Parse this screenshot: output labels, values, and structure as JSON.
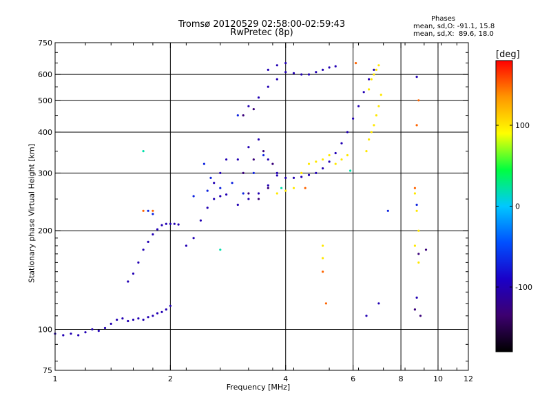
{
  "header": {
    "title_line1": "Tromsø 20120529 02:58:00-02:59:43",
    "title_line2": "RwPretec (8p)"
  },
  "phase_info": {
    "heading": "Phases",
    "line_o": "mean, sd,O: -91.1, 15.8",
    "line_x": "mean, sd,X:  89.6, 18.0"
  },
  "chart_data": {
    "type": "scatter",
    "xlabel": "Frequency [MHz]",
    "ylabel": "Stationary phase Virtual Height [km]",
    "xscale": "log",
    "yscale": "log",
    "xlim": [
      1,
      12
    ],
    "ylim": [
      75,
      750
    ],
    "xticks": [
      1,
      2,
      4,
      6,
      8,
      10,
      12
    ],
    "yticks": [
      75,
      100,
      200,
      300,
      400,
      500,
      600,
      750
    ],
    "x_gridlines": [
      2,
      4,
      6,
      8,
      10
    ],
    "y_gridlines": [
      100,
      200,
      300,
      400,
      500,
      600
    ],
    "grid": true,
    "colorbar": {
      "label": "[deg]",
      "range": [
        -180,
        180
      ],
      "ticks": [
        100,
        0,
        -100
      ],
      "colormap": "rainbow (black-purple-blue-cyan-green-yellow-orange-red)",
      "stops": [
        "#000000",
        "#3d0070",
        "#1a00c8",
        "#0050ff",
        "#00c8ff",
        "#00ff40",
        "#ffff00",
        "#ff9600",
        "#ff0000"
      ]
    },
    "series": [
      {
        "phase": -100,
        "points": [
          [
            1.0,
            97
          ],
          [
            1.05,
            96
          ],
          [
            1.1,
            97
          ],
          [
            1.15,
            96
          ],
          [
            1.2,
            98
          ],
          [
            1.25,
            100
          ],
          [
            1.3,
            99
          ],
          [
            1.35,
            101
          ],
          [
            1.4,
            104
          ],
          [
            1.45,
            107
          ],
          [
            1.5,
            108
          ],
          [
            1.55,
            106
          ],
          [
            1.6,
            107
          ],
          [
            1.65,
            108
          ],
          [
            1.7,
            107
          ],
          [
            1.75,
            109
          ],
          [
            1.8,
            110
          ],
          [
            1.85,
            112
          ],
          [
            1.9,
            113
          ],
          [
            1.95,
            115
          ],
          [
            2.0,
            118
          ],
          [
            1.55,
            140
          ],
          [
            1.6,
            148
          ],
          [
            1.65,
            160
          ],
          [
            1.7,
            175
          ],
          [
            1.75,
            185
          ],
          [
            1.8,
            195
          ],
          [
            1.85,
            202
          ],
          [
            1.9,
            208
          ],
          [
            1.95,
            210
          ],
          [
            2.0,
            210
          ],
          [
            2.05,
            210
          ],
          [
            2.1,
            209
          ],
          [
            2.2,
            180
          ],
          [
            2.3,
            190
          ],
          [
            2.4,
            215
          ],
          [
            2.5,
            235
          ],
          [
            2.6,
            250
          ],
          [
            2.7,
            255
          ],
          [
            2.8,
            258
          ],
          [
            2.6,
            280
          ],
          [
            2.7,
            300
          ],
          [
            2.8,
            330
          ],
          [
            3.0,
            240
          ],
          [
            3.2,
            250
          ],
          [
            3.4,
            260
          ],
          [
            3.6,
            275
          ],
          [
            3.8,
            295
          ],
          [
            4.0,
            290
          ],
          [
            4.2,
            290
          ],
          [
            4.4,
            292
          ],
          [
            4.6,
            296
          ],
          [
            4.8,
            300
          ],
          [
            5.0,
            310
          ],
          [
            5.2,
            325
          ],
          [
            5.4,
            345
          ],
          [
            5.6,
            370
          ],
          [
            5.8,
            400
          ],
          [
            6.0,
            440
          ],
          [
            6.2,
            480
          ],
          [
            6.4,
            530
          ],
          [
            6.6,
            580
          ],
          [
            6.8,
            620
          ],
          [
            3.0,
            330
          ],
          [
            3.2,
            360
          ],
          [
            3.4,
            380
          ],
          [
            3.6,
            330
          ],
          [
            3.8,
            300
          ],
          [
            3.2,
            480
          ],
          [
            3.4,
            510
          ],
          [
            3.6,
            550
          ],
          [
            3.8,
            580
          ],
          [
            4.0,
            610
          ],
          [
            4.2,
            605
          ],
          [
            4.4,
            600
          ],
          [
            4.6,
            600
          ],
          [
            4.8,
            610
          ],
          [
            5.0,
            620
          ],
          [
            5.2,
            630
          ],
          [
            5.4,
            635
          ],
          [
            3.6,
            620
          ],
          [
            3.8,
            640
          ],
          [
            4.0,
            650
          ],
          [
            8.8,
            125
          ],
          [
            8.8,
            590
          ],
          [
            6.5,
            110
          ],
          [
            7.0,
            120
          ]
        ]
      },
      {
        "phase": -70,
        "points": [
          [
            2.3,
            255
          ],
          [
            2.5,
            265
          ],
          [
            2.7,
            270
          ],
          [
            2.9,
            280
          ],
          [
            3.1,
            260
          ],
          [
            3.3,
            300
          ],
          [
            3.5,
            340
          ],
          [
            1.75,
            230
          ],
          [
            1.8,
            225
          ],
          [
            2.45,
            320
          ],
          [
            2.55,
            290
          ],
          [
            3.0,
            450
          ],
          [
            7.4,
            230
          ],
          [
            8.8,
            240
          ]
        ]
      },
      {
        "phase": -130,
        "points": [
          [
            3.1,
            300
          ],
          [
            3.3,
            330
          ],
          [
            3.5,
            350
          ],
          [
            3.7,
            320
          ],
          [
            3.1,
            450
          ],
          [
            3.3,
            470
          ],
          [
            3.2,
            260
          ],
          [
            3.4,
            250
          ],
          [
            3.6,
            270
          ],
          [
            8.7,
            115
          ],
          [
            8.9,
            170
          ],
          [
            9.3,
            175
          ],
          [
            9.0,
            110
          ]
        ]
      },
      {
        "phase": 20,
        "points": [
          [
            1.7,
            350
          ],
          [
            2.7,
            175
          ],
          [
            3.9,
            270
          ],
          [
            5.9,
            305
          ]
        ]
      },
      {
        "phase": 100,
        "points": [
          [
            3.8,
            260
          ],
          [
            4.0,
            265
          ],
          [
            4.2,
            270
          ],
          [
            4.4,
            300
          ],
          [
            4.6,
            320
          ],
          [
            4.8,
            325
          ],
          [
            5.0,
            330
          ],
          [
            5.2,
            340
          ],
          [
            5.4,
            320
          ],
          [
            5.6,
            330
          ],
          [
            5.8,
            340
          ],
          [
            6.5,
            350
          ],
          [
            6.6,
            380
          ],
          [
            6.7,
            400
          ],
          [
            6.8,
            420
          ],
          [
            6.9,
            450
          ],
          [
            7.0,
            480
          ],
          [
            7.1,
            520
          ],
          [
            6.6,
            540
          ],
          [
            6.7,
            580
          ],
          [
            6.8,
            600
          ],
          [
            6.9,
            620
          ],
          [
            7.0,
            640
          ],
          [
            5.0,
            180
          ],
          [
            5.0,
            165
          ],
          [
            8.7,
            260
          ],
          [
            8.8,
            230
          ],
          [
            8.9,
            200
          ],
          [
            8.7,
            180
          ],
          [
            8.9,
            160
          ]
        ]
      },
      {
        "phase": 150,
        "points": [
          [
            1.7,
            230
          ],
          [
            1.8,
            230
          ],
          [
            5.0,
            150
          ],
          [
            5.1,
            120
          ],
          [
            6.1,
            650
          ],
          [
            4.5,
            270
          ],
          [
            8.9,
            500
          ],
          [
            8.8,
            420
          ],
          [
            8.7,
            270
          ]
        ]
      }
    ]
  }
}
